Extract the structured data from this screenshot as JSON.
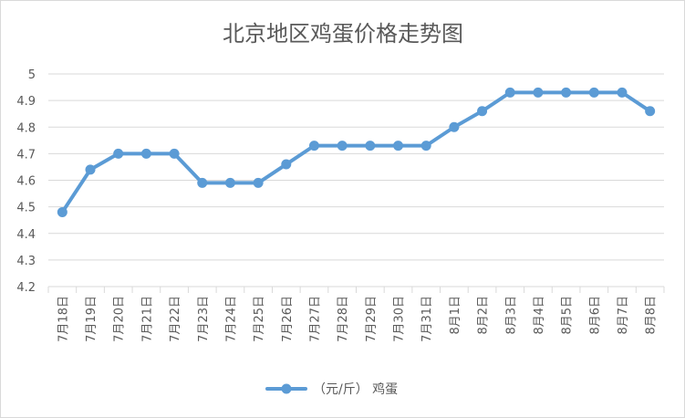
{
  "chart_data": {
    "type": "line",
    "title": "北京地区鸡蛋价格走势图",
    "xlabel": "",
    "ylabel": "",
    "categories": [
      "7月18日",
      "7月19日",
      "7月20日",
      "7月21日",
      "7月22日",
      "7月23日",
      "7月24日",
      "7月25日",
      "7月26日",
      "7月27日",
      "7月28日",
      "7月29日",
      "7月30日",
      "7月31日",
      "8月1日",
      "8月2日",
      "8月3日",
      "8月4日",
      "8月5日",
      "8月6日",
      "8月7日",
      "8月8日"
    ],
    "series": [
      {
        "name": "（元/斤） 鸡蛋",
        "values": [
          4.48,
          4.64,
          4.7,
          4.7,
          4.7,
          4.59,
          4.59,
          4.59,
          4.66,
          4.73,
          4.73,
          4.73,
          4.73,
          4.73,
          4.8,
          4.86,
          4.93,
          4.93,
          4.93,
          4.93,
          4.93,
          4.86
        ]
      }
    ],
    "ylim": [
      4.2,
      5.0
    ],
    "yticks": [
      "4.2",
      "4.3",
      "4.4",
      "4.5",
      "4.6",
      "4.7",
      "4.8",
      "4.9",
      "5"
    ],
    "grid": true,
    "legend_position": "bottom",
    "colors": {
      "series": "#5b9bd5",
      "grid": "#d9d9d9",
      "text": "#595959"
    }
  }
}
